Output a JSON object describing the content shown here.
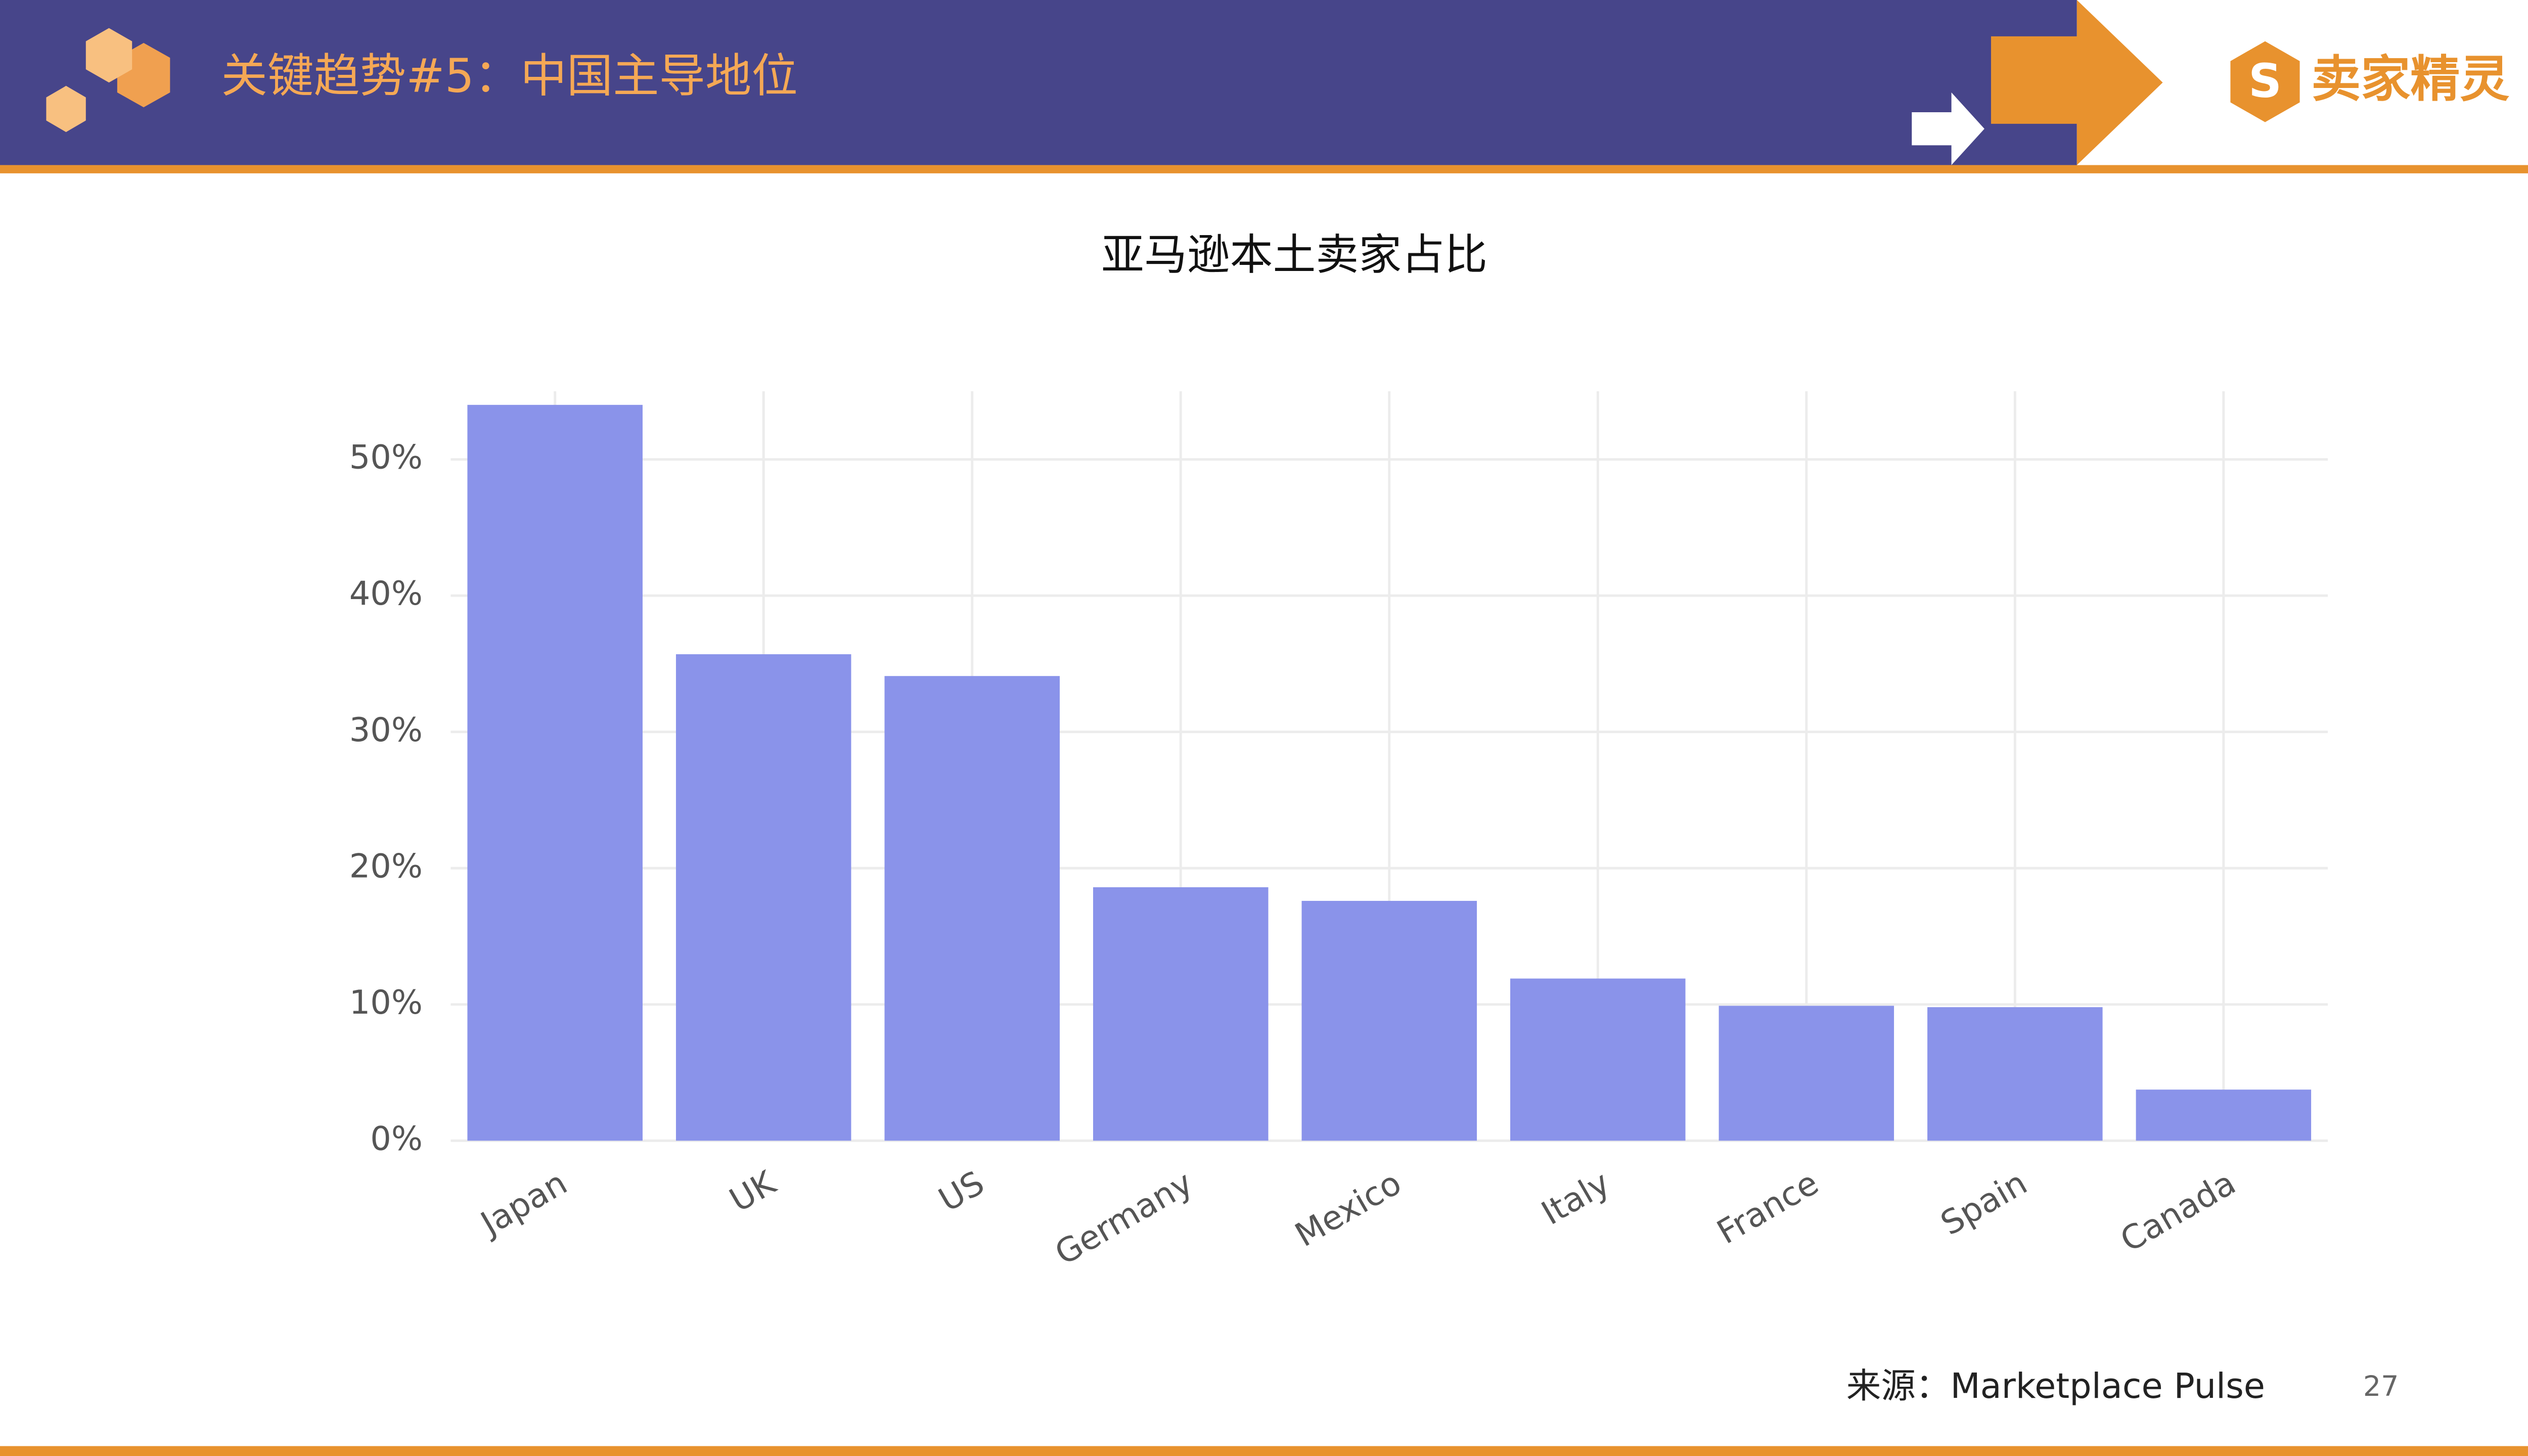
{
  "header": {
    "title": "关键趋势#5：中国主导地位",
    "logo": "卖家精灵"
  },
  "chart_data": {
    "type": "bar",
    "title": "亚马逊本土卖家占比",
    "categories": [
      "Japan",
      "UK",
      "US",
      "Germany",
      "Mexico",
      "Italy",
      "France",
      "Spain",
      "Canada"
    ],
    "values": [
      54,
      35.7,
      34.1,
      18.6,
      17.6,
      11.9,
      9.9,
      9.8,
      3.75
    ],
    "color": "#8a93ea",
    "ylim": [
      0,
      55
    ],
    "yticks": [
      {
        "value": 0,
        "label": "0%"
      },
      {
        "value": 10,
        "label": "10%"
      },
      {
        "value": 20,
        "label": "20%"
      },
      {
        "value": 30,
        "label": "30%"
      },
      {
        "value": 40,
        "label": "40%"
      },
      {
        "value": 50,
        "label": "50%"
      }
    ],
    "grid": true
  },
  "footer": {
    "source": "来源：Marketplace Pulse",
    "page": "27"
  }
}
